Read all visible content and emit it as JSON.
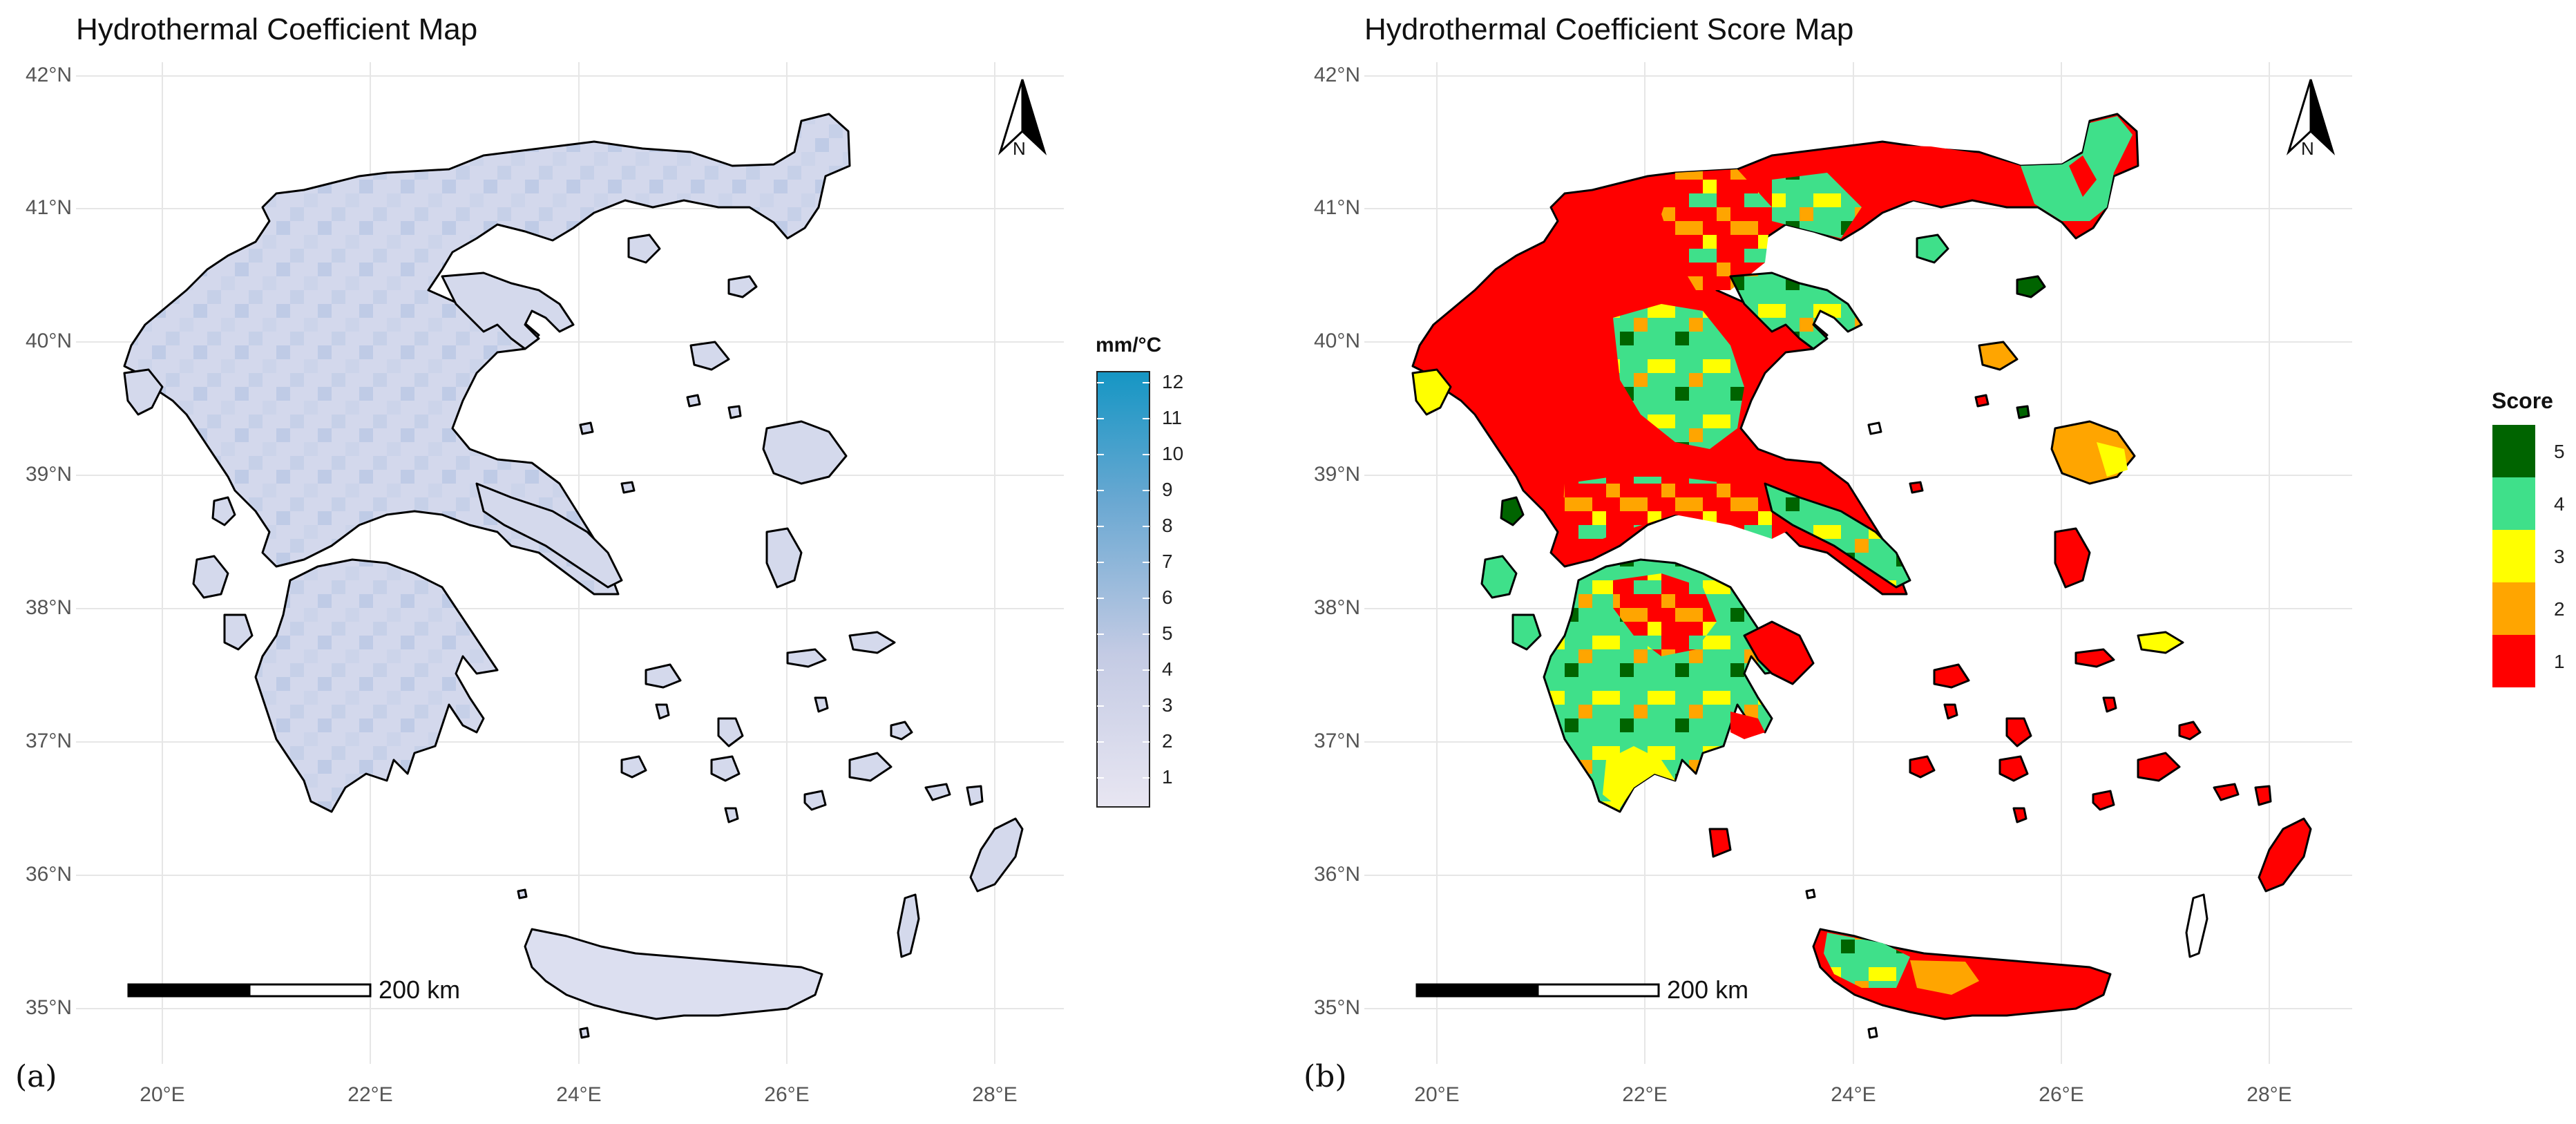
{
  "panels": [
    {
      "label": "(a)",
      "title": "Hydrothermal Coefficient Map",
      "lat_ticks": [
        "42°N",
        "41°N",
        "40°N",
        "39°N",
        "38°N",
        "37°N",
        "36°N",
        "35°N"
      ],
      "lon_ticks": [
        "20°E",
        "22°E",
        "24°E",
        "26°E",
        "28°E"
      ],
      "scale_bar_label": "200 km",
      "north_label": "N",
      "legend": {
        "type": "continuous",
        "title": "mm/°C",
        "ticks": [
          "12",
          "11",
          "10",
          "9",
          "8",
          "7",
          "6",
          "5",
          "4",
          "3",
          "2",
          "1"
        ],
        "range": [
          1,
          12
        ],
        "colors": {
          "low": "#e8e6f2",
          "high": "#1596c4"
        }
      }
    },
    {
      "label": "(b)",
      "title": "Hydrothermal Coefficient Score Map",
      "lat_ticks": [
        "42°N",
        "41°N",
        "40°N",
        "39°N",
        "38°N",
        "37°N",
        "36°N",
        "35°N"
      ],
      "lon_ticks": [
        "20°E",
        "22°E",
        "24°E",
        "26°E",
        "28°E"
      ],
      "scale_bar_label": "200 km",
      "north_label": "N",
      "legend": {
        "type": "discrete",
        "title": "Score",
        "classes": [
          {
            "label": "5",
            "color": "#006400"
          },
          {
            "label": "4",
            "color": "#3fe08a"
          },
          {
            "label": "3",
            "color": "#ffff00"
          },
          {
            "label": "2",
            "color": "#ffa500"
          },
          {
            "label": "1",
            "color": "#ff0000"
          }
        ]
      }
    }
  ]
}
